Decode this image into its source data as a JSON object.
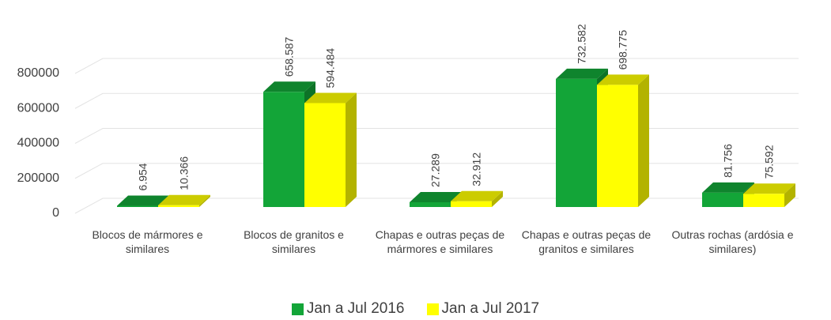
{
  "chart_data": {
    "type": "bar3d",
    "categories": [
      "Blocos de mármores e similares",
      "Blocos de granitos e similares",
      "Chapas e outras peças de mármores e similares",
      "Chapas e outras peças de granitos e similares",
      "Outras rochas (ardósia e similares)"
    ],
    "series": [
      {
        "name": "Jan a Jul 2016",
        "color": "#13a538",
        "values": [
          6954,
          658587,
          27289,
          732582,
          81756
        ],
        "value_labels": [
          "6.954",
          "658.587",
          "27.289",
          "732.582",
          "81.756"
        ]
      },
      {
        "name": "Jan a Jul 2017",
        "color": "#ffff00",
        "values": [
          10366,
          594484,
          32912,
          698775,
          75592
        ],
        "value_labels": [
          "10.366",
          "594.484",
          "32.912",
          "698.775",
          "75.592"
        ]
      }
    ],
    "ylim": [
      0,
      800000
    ],
    "yticks": [
      0,
      200000,
      400000,
      600000,
      800000
    ],
    "grid": true,
    "legend": "bottom"
  }
}
